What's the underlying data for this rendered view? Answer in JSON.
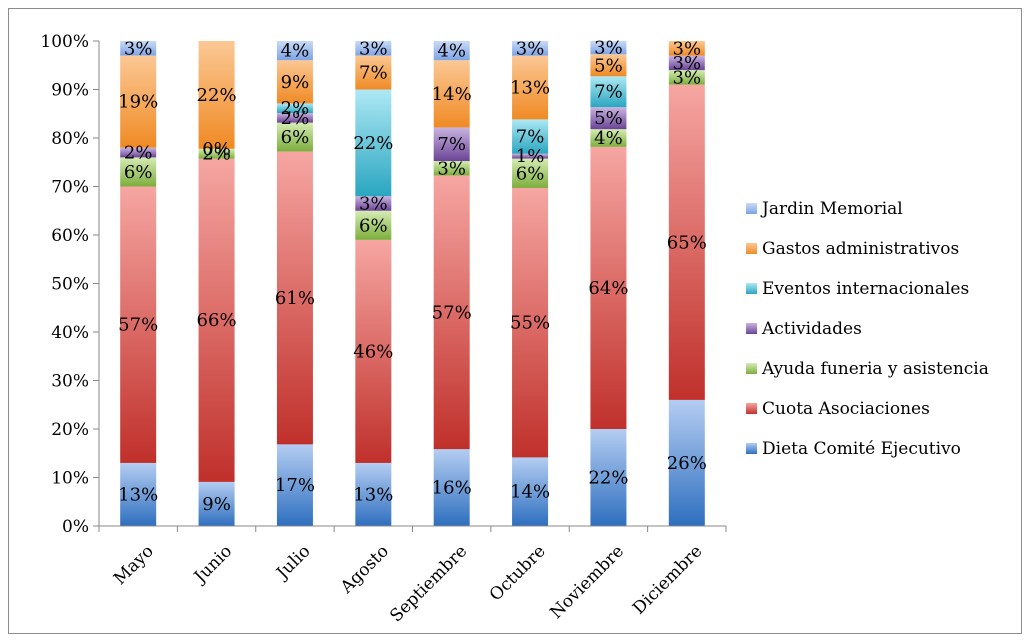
{
  "chart_data": {
    "type": "bar",
    "stacked": "percent",
    "title": "",
    "xlabel": "",
    "ylabel": "",
    "ylim": [
      0,
      100
    ],
    "y_ticks": [
      "0%",
      "10%",
      "20%",
      "30%",
      "40%",
      "50%",
      "60%",
      "70%",
      "80%",
      "90%",
      "100%"
    ],
    "grid": false,
    "legend_position": "right",
    "categories": [
      "Mayo",
      "Junio",
      "Julio",
      "Agosto",
      "Septiembre",
      "Octubre",
      "Noviembre",
      "Diciembre"
    ],
    "series": [
      {
        "name": "Dieta Comité Ejecutivo",
        "color_dark": "#2e6fbf",
        "color_light": "#b4cdf2",
        "values": [
          13,
          9,
          17,
          13,
          16,
          14,
          22,
          26
        ],
        "labels": [
          "13%",
          "9%",
          "17%",
          "13%",
          "16%",
          "14%",
          "22%",
          "26%"
        ]
      },
      {
        "name": "Cuota Asociaciones",
        "color_dark": "#c0302b",
        "color_light": "#f6a6a2",
        "values": [
          57,
          66,
          61,
          46,
          57,
          55,
          64,
          65
        ],
        "labels": [
          "57%",
          "66%",
          "61%",
          "46%",
          "57%",
          "55%",
          "64%",
          "65%"
        ]
      },
      {
        "name": "Ayuda funeria y asistencia",
        "color_dark": "#7cae3c",
        "color_light": "#d6ecb4",
        "values": [
          6,
          2,
          6,
          6,
          3,
          6,
          4,
          3
        ],
        "labels": [
          "6%",
          "2%",
          "6%",
          "6%",
          "3%",
          "6%",
          "4%",
          "3%"
        ]
      },
      {
        "name": "Actividades",
        "color_dark": "#6b4496",
        "color_light": "#c9b4e0",
        "values": [
          2,
          0,
          2,
          3,
          7,
          1,
          5,
          3
        ],
        "labels": [
          "2%",
          "0%",
          "2%",
          "3%",
          "7%",
          "1%",
          "5%",
          "3%"
        ]
      },
      {
        "name": "Eventos internacionales",
        "color_dark": "#2aa6c0",
        "color_light": "#aee8f4",
        "values": [
          0,
          0,
          2,
          22,
          0,
          7,
          7,
          0
        ],
        "labels": [
          "",
          "",
          "2%",
          "22%",
          "",
          "7%",
          "7%",
          ""
        ]
      },
      {
        "name": "Gastos administrativos",
        "color_dark": "#f08a24",
        "color_light": "#fbc895",
        "values": [
          19,
          22,
          9,
          7,
          14,
          13,
          5,
          3
        ],
        "labels": [
          "19%",
          "22%",
          "9%",
          "7%",
          "14%",
          "13%",
          "5%",
          "3%"
        ]
      },
      {
        "name": "Jardin Memorial",
        "color_dark": "#7ea4e6",
        "color_light": "#c9daf6",
        "values": [
          3,
          0,
          4,
          3,
          4,
          3,
          3,
          0
        ],
        "labels": [
          "3%",
          "",
          "4%",
          "3%",
          "4%",
          "3%",
          "3%",
          ""
        ]
      }
    ]
  }
}
